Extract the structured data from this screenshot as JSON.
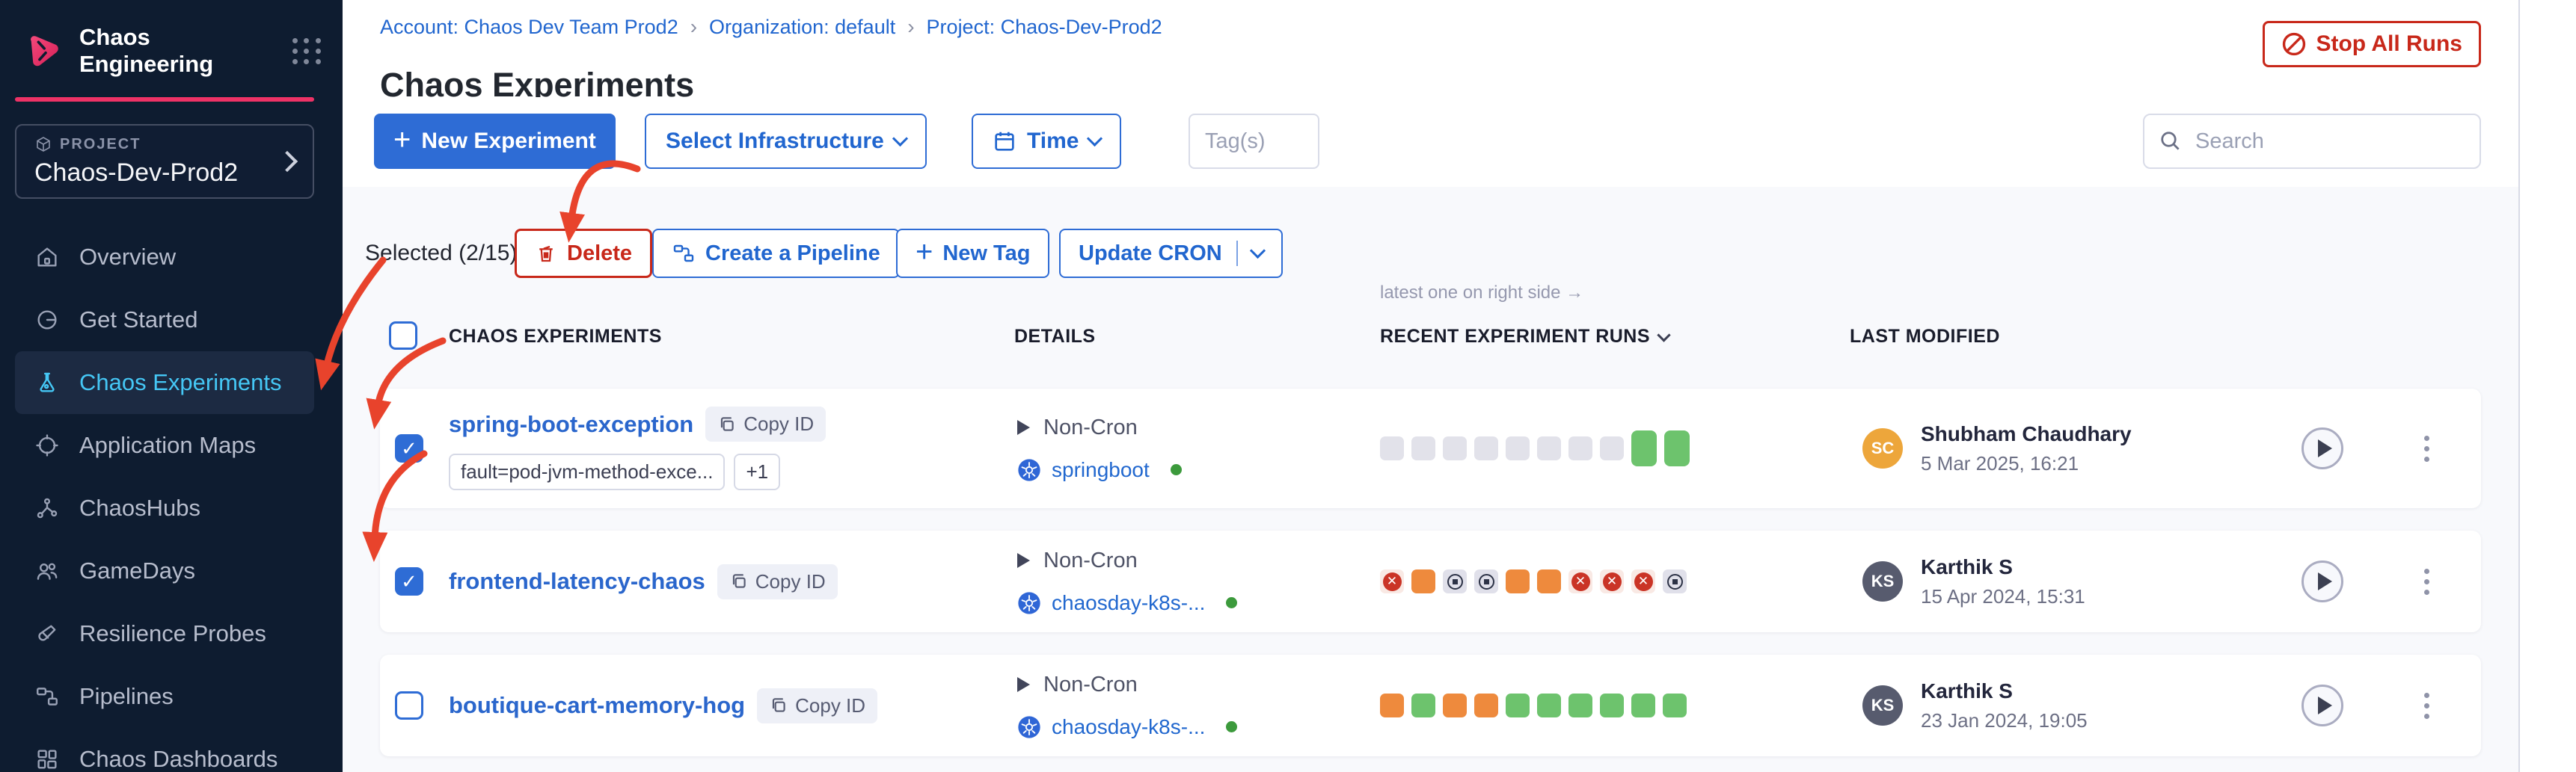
{
  "brand": {
    "app_title": "Chaos Engineering"
  },
  "project_selector": {
    "label": "PROJECT",
    "name": "Chaos-Dev-Prod2"
  },
  "sidebar": {
    "items": [
      {
        "label": "Overview",
        "icon": "home-icon",
        "active": false
      },
      {
        "label": "Get Started",
        "icon": "get-started-icon",
        "active": false
      },
      {
        "label": "Chaos Experiments",
        "icon": "flask-icon",
        "active": true
      },
      {
        "label": "Application Maps",
        "icon": "target-icon",
        "active": false
      },
      {
        "label": "ChaosHubs",
        "icon": "network-icon",
        "active": false
      },
      {
        "label": "GameDays",
        "icon": "people-icon",
        "active": false
      },
      {
        "label": "Resilience Probes",
        "icon": "probe-icon",
        "active": false
      },
      {
        "label": "Pipelines",
        "icon": "pipeline-icon",
        "active": false
      },
      {
        "label": "Chaos Dashboards",
        "icon": "dashboard-icon",
        "active": false
      }
    ]
  },
  "breadcrumb": {
    "account": "Account: Chaos Dev Team Prod2",
    "separator": "›",
    "organization": "Organization: default",
    "project": "Project: Chaos-Dev-Prod2"
  },
  "page": {
    "title": "Chaos Experiments"
  },
  "header_actions": {
    "stop_all_runs": "Stop All Runs"
  },
  "toolbar": {
    "new_experiment": "New Experiment",
    "select_infrastructure": "Select Infrastructure",
    "time": "Time",
    "tags_placeholder": "Tag(s)",
    "search_placeholder": "Search"
  },
  "selection_bar": {
    "summary": "Selected (2/15)",
    "delete": "Delete",
    "create_pipeline": "Create a Pipeline",
    "new_tag": "New Tag",
    "update_cron": "Update CRON"
  },
  "table": {
    "note": "latest one on right side →",
    "columns": [
      "CHAOS EXPERIMENTS",
      "DETAILS",
      "RECENT EXPERIMENT RUNS",
      "LAST MODIFIED"
    ]
  },
  "rows": [
    {
      "name": "spring-boot-exception",
      "copy_label": "Copy ID",
      "checked": true,
      "tags": [
        "fault=pod-jvm-method-exce...",
        "+1"
      ],
      "cron": "Non-Cron",
      "infra": "springboot",
      "infra_status": "active",
      "runs": [
        "empty",
        "empty",
        "empty",
        "empty",
        "empty",
        "empty",
        "empty",
        "empty",
        "passed_tall",
        "passed_tall"
      ],
      "modified_by": "Shubham Chaudhary",
      "initials": "SC",
      "avatar_color": "#EDA63B",
      "modified_at": "5 Mar 2025, 16:21"
    },
    {
      "name": "frontend-latency-chaos",
      "copy_label": "Copy ID",
      "checked": true,
      "tags": [],
      "cron": "Non-Cron",
      "infra": "chaosday-k8s-...",
      "infra_status": "active",
      "runs": [
        "failed",
        "warning",
        "stopped",
        "stopped",
        "warning",
        "warning",
        "failed",
        "failed",
        "failed",
        "stopped"
      ],
      "modified_by": "Karthik S",
      "initials": "KS",
      "avatar_color": "#575B6E",
      "modified_at": "15 Apr 2024, 15:31"
    },
    {
      "name": "boutique-cart-memory-hog",
      "copy_label": "Copy ID",
      "checked": false,
      "tags": [],
      "cron": "Non-Cron",
      "infra": "chaosday-k8s-...",
      "infra_status": "active",
      "runs": [
        "warning",
        "passed",
        "warning",
        "warning",
        "passed",
        "passed",
        "passed",
        "passed",
        "passed",
        "passed"
      ],
      "modified_by": "Karthik S",
      "initials": "KS",
      "avatar_color": "#575B6E",
      "modified_at": "23 Jan 2024, 19:05"
    }
  ],
  "colors": {
    "brand_pink": "#EE3266",
    "sidebar_bg": "#0E1C30",
    "active_nav_text": "#45C7F5",
    "accent_blue": "#2E6CD5",
    "danger_red": "#C8281A",
    "annotation_red": "#E8432C",
    "run_empty": "#E2E2EA",
    "run_passed_green": "#6DC36D",
    "run_warning_orange": "#EE8A3D",
    "run_failed_red": "#CA3426",
    "infra_status_green": "#3C9A3C",
    "avatar_orange": "#EDA63B",
    "avatar_slate": "#575B6E"
  }
}
